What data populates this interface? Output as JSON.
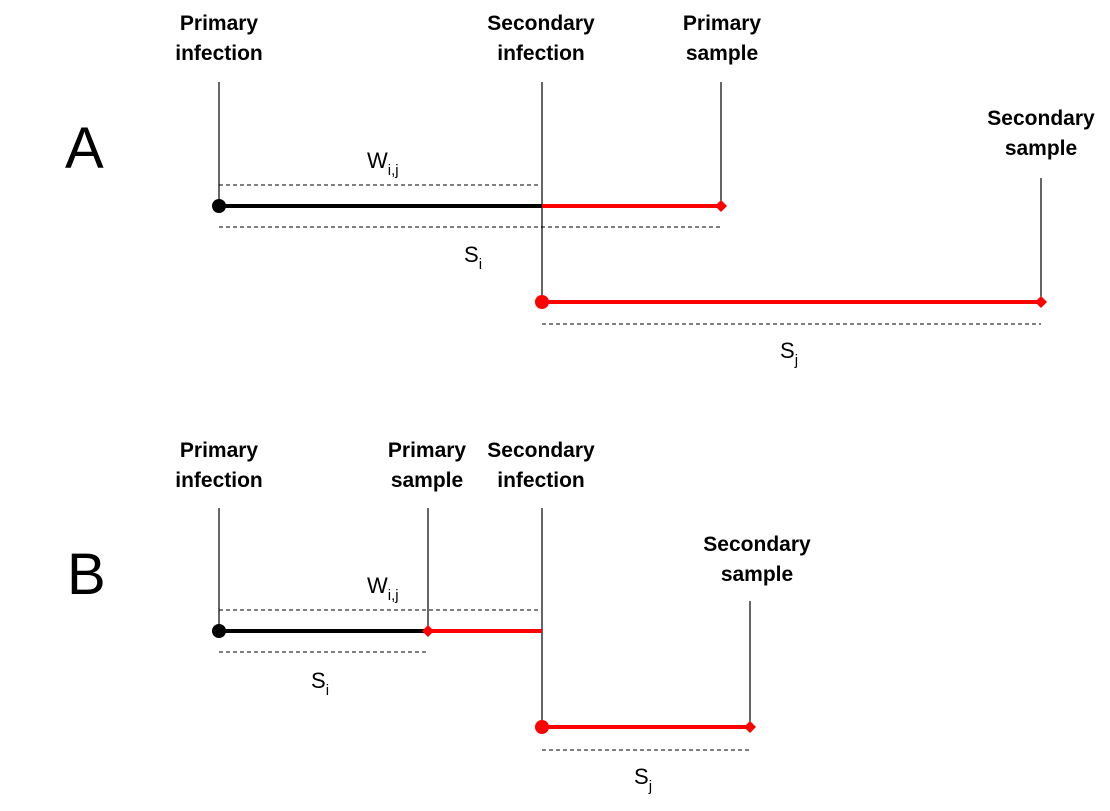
{
  "panel_a": {
    "letter": "A",
    "primary_infection": [
      "Primary",
      "infection"
    ],
    "secondary_infection": [
      "Secondary",
      "infection"
    ],
    "primary_sample": [
      "Primary",
      "sample"
    ],
    "secondary_sample": [
      "Secondary",
      "sample"
    ],
    "w_label": {
      "main": "W",
      "sub": "i,j"
    },
    "si_label": {
      "main": "S",
      "sub": "i"
    },
    "sj_label": {
      "main": "S",
      "sub": "j"
    }
  },
  "panel_b": {
    "letter": "B",
    "primary_infection": [
      "Primary",
      "infection"
    ],
    "primary_sample": [
      "Primary",
      "sample"
    ],
    "secondary_infection": [
      "Secondary",
      "infection"
    ],
    "secondary_sample": [
      "Secondary",
      "sample"
    ],
    "w_label": {
      "main": "W",
      "sub": "i,j"
    },
    "si_label": {
      "main": "S",
      "sub": "i"
    },
    "sj_label": {
      "main": "S",
      "sub": "j"
    }
  },
  "colors": {
    "primary_line": "#000000",
    "secondary_line": "#ff0000"
  }
}
